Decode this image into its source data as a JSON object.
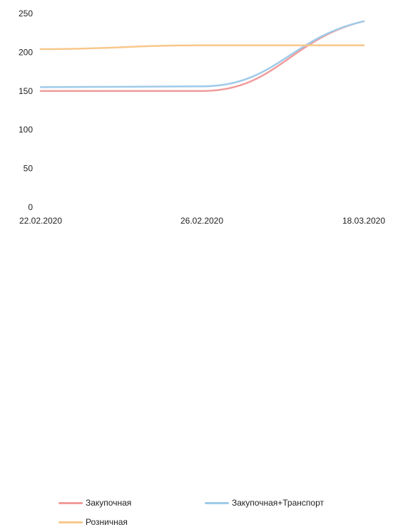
{
  "chart_data": {
    "type": "line",
    "x": [
      "22.02.2020",
      "26.02.2020",
      "18.03.2020"
    ],
    "ylim": [
      0,
      250
    ],
    "yticks": [
      0,
      50,
      100,
      150,
      200,
      250
    ],
    "grid": false,
    "legend_position": "bottom",
    "series": [
      {
        "name": "Закупочная",
        "color": "#f29b9b",
        "values": [
          150,
          150,
          240
        ]
      },
      {
        "name": "Закупочная+Транспорт",
        "color": "#9fcbe9",
        "values": [
          155,
          156,
          240
        ]
      },
      {
        "name": "Розничная",
        "color": "#f8c88a",
        "values": [
          204,
          209,
          209
        ]
      }
    ]
  }
}
